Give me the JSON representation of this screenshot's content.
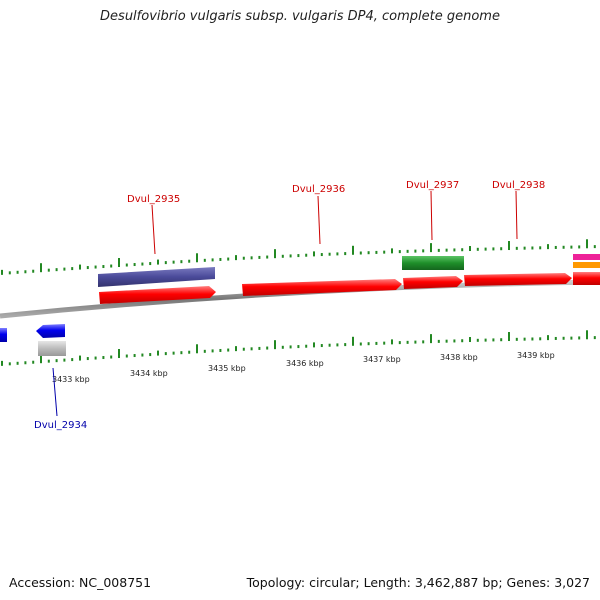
{
  "title": "Desulfovibrio vulgaris subsp. vulgaris DP4, complete genome",
  "footer": {
    "accession": "Accession: NC_008751",
    "topology": "Topology: circular; Length: 3,462,887 bp; Genes: 3,027"
  },
  "genes": [
    {
      "label": "Dvul_2934",
      "color": "#0000cc"
    },
    {
      "label": "Dvul_2935",
      "color": "#cc0000"
    },
    {
      "label": "Dvul_2936",
      "color": "#cc0000"
    },
    {
      "label": "Dvul_2937",
      "color": "#cc0000"
    },
    {
      "label": "Dvul_2938",
      "color": "#cc0000"
    }
  ],
  "kbp_labels": [
    "3433 kbp",
    "3434 kbp",
    "3435 kbp",
    "3436 kbp",
    "3437 kbp",
    "3438 kbp",
    "3439 kbp"
  ],
  "colors": {
    "forward_cds": "#ff0000",
    "reverse_cds": "#0000ee",
    "backbone": "#888888",
    "ticks": "#228822",
    "purple_feature": "#4a4a99",
    "green_feature": "#1f8f2a",
    "grey_feature": "#bbbbbb",
    "magenta_feature": "#ee2299",
    "orange_feature": "#ff9900"
  }
}
